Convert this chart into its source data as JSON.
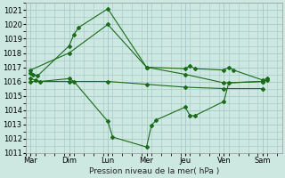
{
  "xlabel": "Pression niveau de la mer( hPa )",
  "ylim": [
    1011,
    1021.5
  ],
  "yticks": [
    1011,
    1012,
    1013,
    1014,
    1015,
    1016,
    1017,
    1018,
    1019,
    1020,
    1021
  ],
  "day_labels": [
    "Mar",
    "Dim",
    "Lun",
    "Mer",
    "Jeu",
    "Ven",
    "Sam"
  ],
  "day_positions": [
    0,
    8,
    16,
    24,
    32,
    40,
    48
  ],
  "xlim": [
    -1,
    52
  ],
  "background_color": "#cce8e0",
  "grid_color": "#aacccc",
  "line_color": "#1a6b1a",
  "series": [
    {
      "x": [
        0,
        0.5,
        1.5,
        8,
        9,
        10,
        16,
        24,
        32,
        33,
        34,
        40,
        41,
        42,
        48,
        49
      ],
      "y": [
        1016.6,
        1016.5,
        1016.4,
        1018.5,
        1019.3,
        1019.8,
        1021.1,
        1017.0,
        1016.9,
        1017.1,
        1016.9,
        1016.8,
        1017.0,
        1016.8,
        1016.1,
        1016.2
      ]
    },
    {
      "x": [
        0,
        8,
        16,
        24,
        32,
        40,
        48
      ],
      "y": [
        1016.8,
        1018.0,
        1020.0,
        1017.0,
        1016.5,
        1015.9,
        1016.0
      ]
    },
    {
      "x": [
        0,
        8,
        16,
        24,
        32,
        40,
        48
      ],
      "y": [
        1016.0,
        1016.0,
        1016.0,
        1015.8,
        1015.6,
        1015.5,
        1015.5
      ]
    },
    {
      "x": [
        0,
        1,
        2,
        8,
        9,
        16,
        17,
        24,
        25,
        26,
        32,
        33,
        34,
        40,
        41,
        48,
        49
      ],
      "y": [
        1016.2,
        1016.1,
        1016.0,
        1016.2,
        1016.0,
        1013.2,
        1012.1,
        1011.4,
        1012.9,
        1013.3,
        1014.2,
        1013.6,
        1013.6,
        1014.6,
        1015.9,
        1016.0,
        1016.1
      ]
    }
  ]
}
